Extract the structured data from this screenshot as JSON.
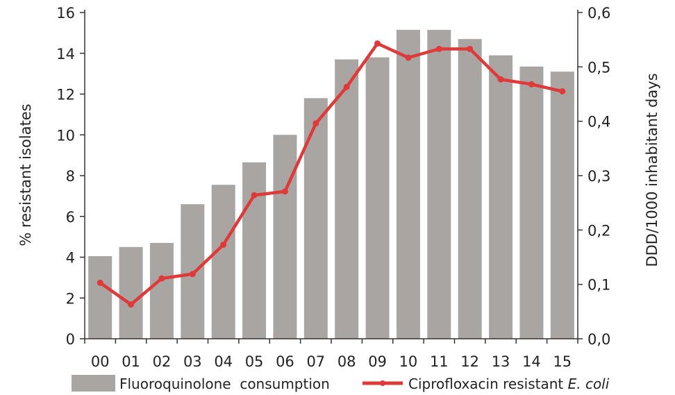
{
  "chart_data": {
    "type": "bar",
    "categories": [
      "00",
      "01",
      "02",
      "03",
      "04",
      "05",
      "06",
      "07",
      "08",
      "09",
      "10",
      "11",
      "12",
      "13",
      "14",
      "15"
    ],
    "series": [
      {
        "name": "Fluoroquinolone  consumption",
        "kind": "bar",
        "axis": "left",
        "values": [
          4.05,
          4.5,
          4.7,
          6.6,
          7.55,
          8.65,
          10.0,
          11.8,
          13.7,
          13.8,
          15.15,
          15.15,
          14.7,
          13.9,
          13.35,
          13.1
        ]
      },
      {
        "name": "Ciprofloxacin resistant ",
        "name_italic": "E. coli",
        "kind": "line",
        "axis": "right",
        "values": [
          0.103,
          0.063,
          0.111,
          0.119,
          0.173,
          0.264,
          0.271,
          0.396,
          0.463,
          0.543,
          0.517,
          0.533,
          0.533,
          0.477,
          0.468,
          0.455
        ]
      }
    ],
    "ylabel": "% resistant  isolates",
    "y2label": "DDD/1000  inhabitant  days",
    "ylim": [
      0,
      16
    ],
    "y2lim": [
      0,
      0.6
    ],
    "yticks": [
      "0",
      "2",
      "4",
      "6",
      "8",
      "10",
      "12",
      "14",
      "16"
    ],
    "y2ticks": [
      "0,0",
      "0,1",
      "0,2",
      "0,3",
      "0,4",
      "0,5",
      "0,6"
    ],
    "grid": false,
    "legend_position": "bottom",
    "colors": {
      "bar": "#a8a5a2",
      "line": "#e0393a"
    }
  }
}
